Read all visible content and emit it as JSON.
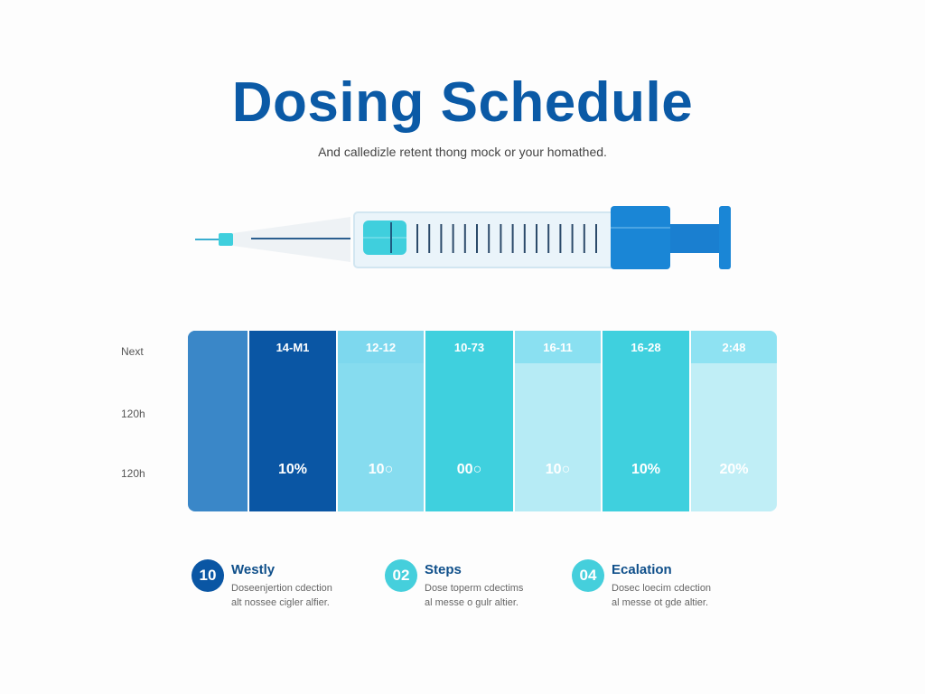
{
  "header": {
    "title": "Dosing Schedule",
    "subtitle": "And calledizle retent thong mock or your homathed."
  },
  "row_labels": [
    "Next",
    "120h",
    "120h"
  ],
  "columns": [
    {
      "label": "",
      "value": "",
      "color": "#3a87c8",
      "header_color": "#3a87c8"
    },
    {
      "label": "14-M1",
      "value": "10%",
      "color": "#0a56a4",
      "header_color": "#0a56a4"
    },
    {
      "label": "12-12",
      "value": "10○",
      "color": "#86dcef",
      "header_color": "#7dd8ee"
    },
    {
      "label": "10-73",
      "value": "00○",
      "color": "#3fd0de",
      "header_color": "#3fd0de"
    },
    {
      "label": "16-11",
      "value": "10○",
      "color": "#b6ebf5",
      "header_color": "#8ae0f1"
    },
    {
      "label": "16-28",
      "value": "10%",
      "color": "#3fd0de",
      "header_color": "#3fd0de"
    },
    {
      "label": "2:48",
      "value": "20%",
      "color": "#c0eef6",
      "header_color": "#8ee2f2"
    }
  ],
  "legend": [
    {
      "number": "10",
      "title": "Westly",
      "line1": "Doseenjertion cdection",
      "line2": "alt nossee cigler alfier.",
      "color": "#0a56a4"
    },
    {
      "number": "02",
      "title": "Steps",
      "line1": "Dose toperm cdectims",
      "line2": "al messe o gulr altier.",
      "color": "#45cfdc"
    },
    {
      "number": "04",
      "title": "Ecalation",
      "line1": "Dosec loecim cdection",
      "line2": "al messe ot gde altier.",
      "color": "#45cfdc"
    }
  ],
  "syringe": {
    "icon": "syringe-icon",
    "plunger_color": "#1a86d6",
    "fluid_color": "#3fcfdd"
  }
}
